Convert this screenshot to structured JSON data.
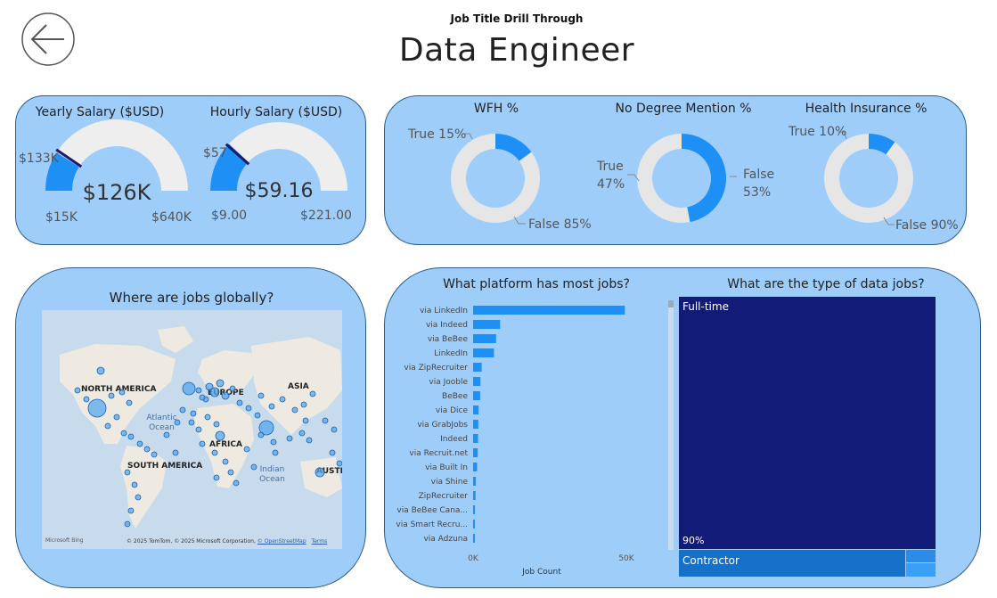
{
  "header": {
    "subtitle": "Job Title Drill Through",
    "title": "Data Engineer",
    "back_icon": "back-arrow-icon"
  },
  "salary": {
    "yearly": {
      "title": "Yearly Salary ($USD)",
      "value": "$126K",
      "min": "$15K",
      "max": "$640K",
      "target": "$133K",
      "fill_fraction": 0.18,
      "target_fraction": 0.19
    },
    "hourly": {
      "title": "Hourly Salary ($USD)",
      "value": "$59.16",
      "min": "$9.00",
      "max": "$221.00",
      "target": "$57",
      "fill_fraction": 0.24,
      "target_fraction": 0.23
    }
  },
  "donuts": [
    {
      "title": "WFH %",
      "true_label": "True 15%",
      "false_label": "False 85%",
      "true_fraction": 0.15
    },
    {
      "title": "No Degree Mention %",
      "true_label_1": "True",
      "true_label_2": "47%",
      "false_label_1": "False",
      "false_label_2": "53%",
      "true_fraction": 0.47
    },
    {
      "title": "Health Insurance %",
      "true_label": "True 10%",
      "false_label": "False 90%",
      "true_fraction": 0.1
    }
  ],
  "map": {
    "title": "Where are jobs globally?",
    "labels": {
      "north_america": "NORTH AMERICA",
      "europe": "EUROPE",
      "asia": "ASIA",
      "africa": "AFRICA",
      "south_america": "SOUTH AMERICA",
      "australia": "AUSTRA",
      "atlantic_1": "Atlantic",
      "atlantic_2": "Ocean",
      "indian_1": "Indian",
      "indian_2": "Ocean"
    },
    "attribution": "© 2025 TomTom, © 2025 Microsoft Corporation,",
    "osm_link": "© OpenStreetMap",
    "terms_link": "Terms",
    "bing_logo": "Microsoft Bing"
  },
  "platforms": {
    "title": "What platform has most jobs?",
    "xlabel": "Job Count",
    "ticks": [
      "0K",
      "50K"
    ],
    "colors": {
      "bar": "#1e90f5"
    }
  },
  "chart_data": {
    "type": "bar",
    "orientation": "horizontal",
    "title": "What platform has most jobs?",
    "xlabel": "Job Count",
    "xlim": [
      0,
      50000
    ],
    "categories": [
      "via LinkedIn",
      "via Indeed",
      "via BeBee",
      "LinkedIn",
      "via ZipRecruiter",
      "via Jooble",
      "BeBee",
      "via Dice",
      "via GrabJobs",
      "Indeed",
      "via Recruit.net",
      "via Built In",
      "via Shine",
      "ZipRecruiter",
      "via BeBee Cana...",
      "via Smart Recru...",
      "via Adzuna"
    ],
    "values": [
      49500,
      8800,
      7500,
      6800,
      2800,
      2400,
      2300,
      1800,
      1700,
      1600,
      1500,
      1300,
      900,
      800,
      600,
      500,
      400
    ]
  },
  "job_types": {
    "title": "What are the type of data jobs?",
    "fulltime_label": "Full-time",
    "fulltime_pct": "90%",
    "contractor_label": "Contractor",
    "colors": {
      "fulltime": "#131b78",
      "contractor": "#1470c9",
      "other": "#3aa0f7"
    }
  }
}
